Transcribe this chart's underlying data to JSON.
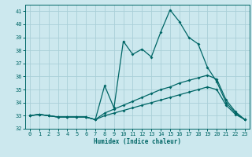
{
  "xlabel": "Humidex (Indice chaleur)",
  "bg_color": "#cce8ee",
  "grid_color": "#aacfd8",
  "line_color": "#006666",
  "xlim": [
    -0.5,
    23.5
  ],
  "ylim": [
    32.0,
    41.5
  ],
  "yticks": [
    32,
    33,
    34,
    35,
    36,
    37,
    38,
    39,
    40,
    41
  ],
  "xticks": [
    0,
    1,
    2,
    3,
    4,
    5,
    6,
    7,
    8,
    9,
    10,
    11,
    12,
    13,
    14,
    15,
    16,
    17,
    18,
    19,
    20,
    21,
    22,
    23
  ],
  "line1_x": [
    0,
    1,
    2,
    3,
    4,
    5,
    6,
    7,
    8,
    9,
    10,
    11,
    12,
    13,
    14,
    15,
    16,
    17,
    18,
    19,
    20,
    21,
    22,
    23
  ],
  "line1_y": [
    33.0,
    33.1,
    33.0,
    32.9,
    32.9,
    32.9,
    32.9,
    32.7,
    35.3,
    33.6,
    38.7,
    37.7,
    38.1,
    37.5,
    39.4,
    41.1,
    40.2,
    39.0,
    38.5,
    36.7,
    35.6,
    34.0,
    33.2,
    32.7
  ],
  "line2_x": [
    0,
    1,
    2,
    3,
    4,
    5,
    6,
    7,
    8,
    9,
    10,
    11,
    12,
    13,
    14,
    15,
    16,
    17,
    18,
    19,
    20,
    21,
    22,
    23
  ],
  "line2_y": [
    33.0,
    33.1,
    33.0,
    32.9,
    32.9,
    32.9,
    32.9,
    32.7,
    33.2,
    33.5,
    33.8,
    34.1,
    34.4,
    34.7,
    35.0,
    35.2,
    35.5,
    35.7,
    35.9,
    36.1,
    35.8,
    34.2,
    33.3,
    32.7
  ],
  "line3_x": [
    0,
    1,
    2,
    3,
    4,
    5,
    6,
    7,
    8,
    9,
    10,
    11,
    12,
    13,
    14,
    15,
    16,
    17,
    18,
    19,
    20,
    21,
    22,
    23
  ],
  "line3_y": [
    33.0,
    33.1,
    33.0,
    32.9,
    32.9,
    32.9,
    32.9,
    32.7,
    33.0,
    33.2,
    33.4,
    33.6,
    33.8,
    34.0,
    34.2,
    34.4,
    34.6,
    34.8,
    35.0,
    35.2,
    35.0,
    33.8,
    33.1,
    32.7
  ]
}
